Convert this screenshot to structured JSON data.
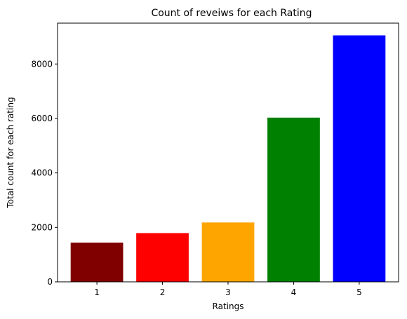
{
  "chart_data": {
    "type": "bar",
    "title": "Count of reveiws for each Rating",
    "xlabel": "Ratings",
    "ylabel": "Total count for each rating",
    "categories": [
      "1",
      "2",
      "3",
      "4",
      "5"
    ],
    "values": [
      1440,
      1790,
      2180,
      6030,
      9050
    ],
    "colors": [
      "#800000",
      "#ff0000",
      "#ffa500",
      "#008000",
      "#0000ff"
    ],
    "ylim": [
      0,
      9500
    ],
    "yticks": [
      0,
      2000,
      4000,
      6000,
      8000
    ],
    "grid": false,
    "legend": "none"
  }
}
